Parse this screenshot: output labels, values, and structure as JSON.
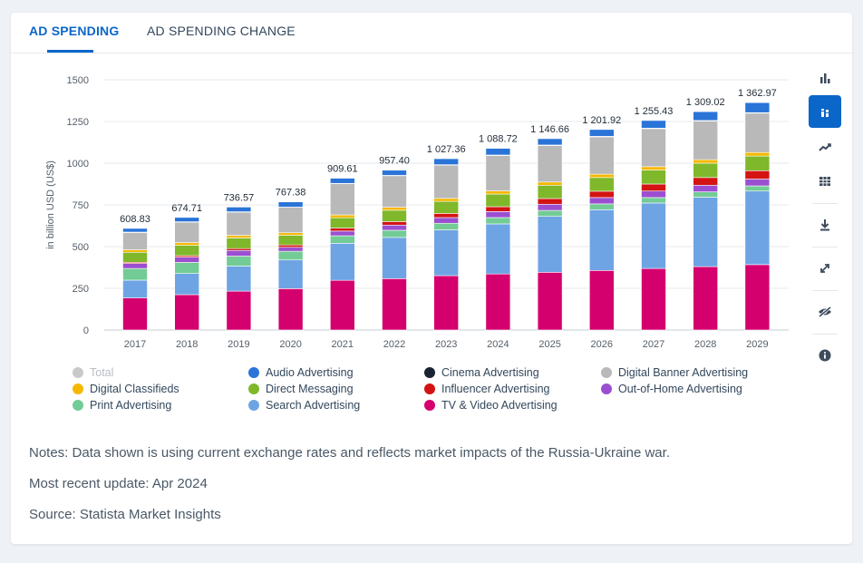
{
  "tabs": [
    {
      "label": "AD SPENDING",
      "active": true
    },
    {
      "label": "AD SPENDING CHANGE",
      "active": false
    }
  ],
  "toolbar": {
    "items": [
      {
        "icon": "bar-chart-icon",
        "active": false
      },
      {
        "icon": "stacked-bar-icon",
        "active": true
      },
      {
        "icon": "trend-line-icon",
        "active": false
      },
      {
        "icon": "table-icon",
        "active": false
      },
      {
        "icon": "download-icon",
        "active": false
      },
      {
        "icon": "expand-icon",
        "active": false
      },
      {
        "icon": "hide-icon",
        "active": false
      },
      {
        "icon": "info-icon",
        "active": false
      }
    ]
  },
  "chart_data": {
    "type": "bar",
    "stacked": true,
    "ylabel": "in billion USD (US$)",
    "ylim": [
      0,
      1500
    ],
    "yticks": [
      0,
      250,
      500,
      750,
      1000,
      1250,
      1500
    ],
    "grid": true,
    "categories": [
      "2017",
      "2018",
      "2019",
      "2020",
      "2021",
      "2022",
      "2023",
      "2024",
      "2025",
      "2026",
      "2027",
      "2028",
      "2029"
    ],
    "total_labels": [
      "608.83",
      "674.71",
      "736.57",
      "767.38",
      "909.61",
      "957.40",
      "1 027.36",
      "1 088.72",
      "1 146.66",
      "1 201.92",
      "1 255.43",
      "1 309.02",
      "1 362.97"
    ],
    "series": [
      {
        "name": "TV & Video Advertising",
        "color": "#d4006e",
        "values": [
          192,
          212,
          233,
          248,
          298,
          308,
          326,
          336,
          346,
          357,
          369,
          380,
          392
        ]
      },
      {
        "name": "Search Advertising",
        "color": "#6ea4e4",
        "values": [
          107,
          127,
          150,
          172,
          222,
          247,
          274,
          300,
          335,
          364,
          392,
          416,
          441
        ]
      },
      {
        "name": "Print Advertising",
        "color": "#73cb96",
        "values": [
          70,
          66,
          60,
          52,
          45,
          43,
          40,
          38,
          36,
          35,
          33,
          32,
          31
        ]
      },
      {
        "name": "Out-of-Home Advertising",
        "color": "#9b4fd0",
        "values": [
          30,
          32,
          34,
          24,
          28,
          31,
          34,
          36,
          37,
          38,
          39,
          40,
          41
        ]
      },
      {
        "name": "Influencer Advertising",
        "color": "#d41313",
        "values": [
          7,
          9,
          11,
          14,
          18,
          21,
          25,
          29,
          34,
          38,
          42,
          46,
          50
        ]
      },
      {
        "name": "Direct Messaging",
        "color": "#7fb82b",
        "values": [
          60,
          62,
          64,
          58,
          62,
          68,
          72,
          76,
          80,
          82,
          84,
          86,
          88
        ]
      },
      {
        "name": "Digital Classifieds",
        "color": "#f5b800",
        "values": [
          15,
          16,
          16,
          15,
          17,
          18,
          18,
          19,
          19,
          20,
          20,
          21,
          21
        ]
      },
      {
        "name": "Digital Banner Advertising",
        "color": "#b9b9b9",
        "values": [
          103,
          122,
          138,
          153,
          187,
          189,
          199,
          212,
          219,
          224,
          228,
          232,
          236
        ]
      },
      {
        "name": "Cinema Advertising",
        "color": "#111111",
        "values": [
          3,
          3,
          3,
          1,
          2,
          2,
          3,
          3,
          3,
          3,
          3,
          3,
          3
        ]
      },
      {
        "name": "Audio Advertising",
        "color": "#2a74d8",
        "values": [
          22,
          26,
          28,
          31,
          31,
          31,
          36,
          40,
          38,
          41,
          46,
          53,
          60
        ]
      }
    ],
    "legend": {
      "placement": "bottom",
      "entries": [
        {
          "name": "Total",
          "color": "#c9c9c9",
          "hidden": true
        },
        {
          "name": "Audio Advertising",
          "color": "#2a74d8"
        },
        {
          "name": "Cinema Advertising",
          "color": "#1a2332"
        },
        {
          "name": "Digital Banner Advertising",
          "color": "#b9b9b9"
        },
        {
          "name": "Digital Classifieds",
          "color": "#f5b800"
        },
        {
          "name": "Direct Messaging",
          "color": "#7fb82b"
        },
        {
          "name": "Influencer Advertising",
          "color": "#d41313"
        },
        {
          "name": "Out-of-Home Advertising",
          "color": "#9b4fd0"
        },
        {
          "name": "Print Advertising",
          "color": "#73cb96"
        },
        {
          "name": "Search Advertising",
          "color": "#6ea4e4"
        },
        {
          "name": "TV & Video Advertising",
          "color": "#d4006e"
        }
      ]
    }
  },
  "notes": {
    "note": "Notes: Data shown is using current exchange rates and reflects market impacts of the Russia-Ukraine war.",
    "update": "Most recent update: Apr 2024",
    "source": "Source: Statista Market Insights"
  }
}
